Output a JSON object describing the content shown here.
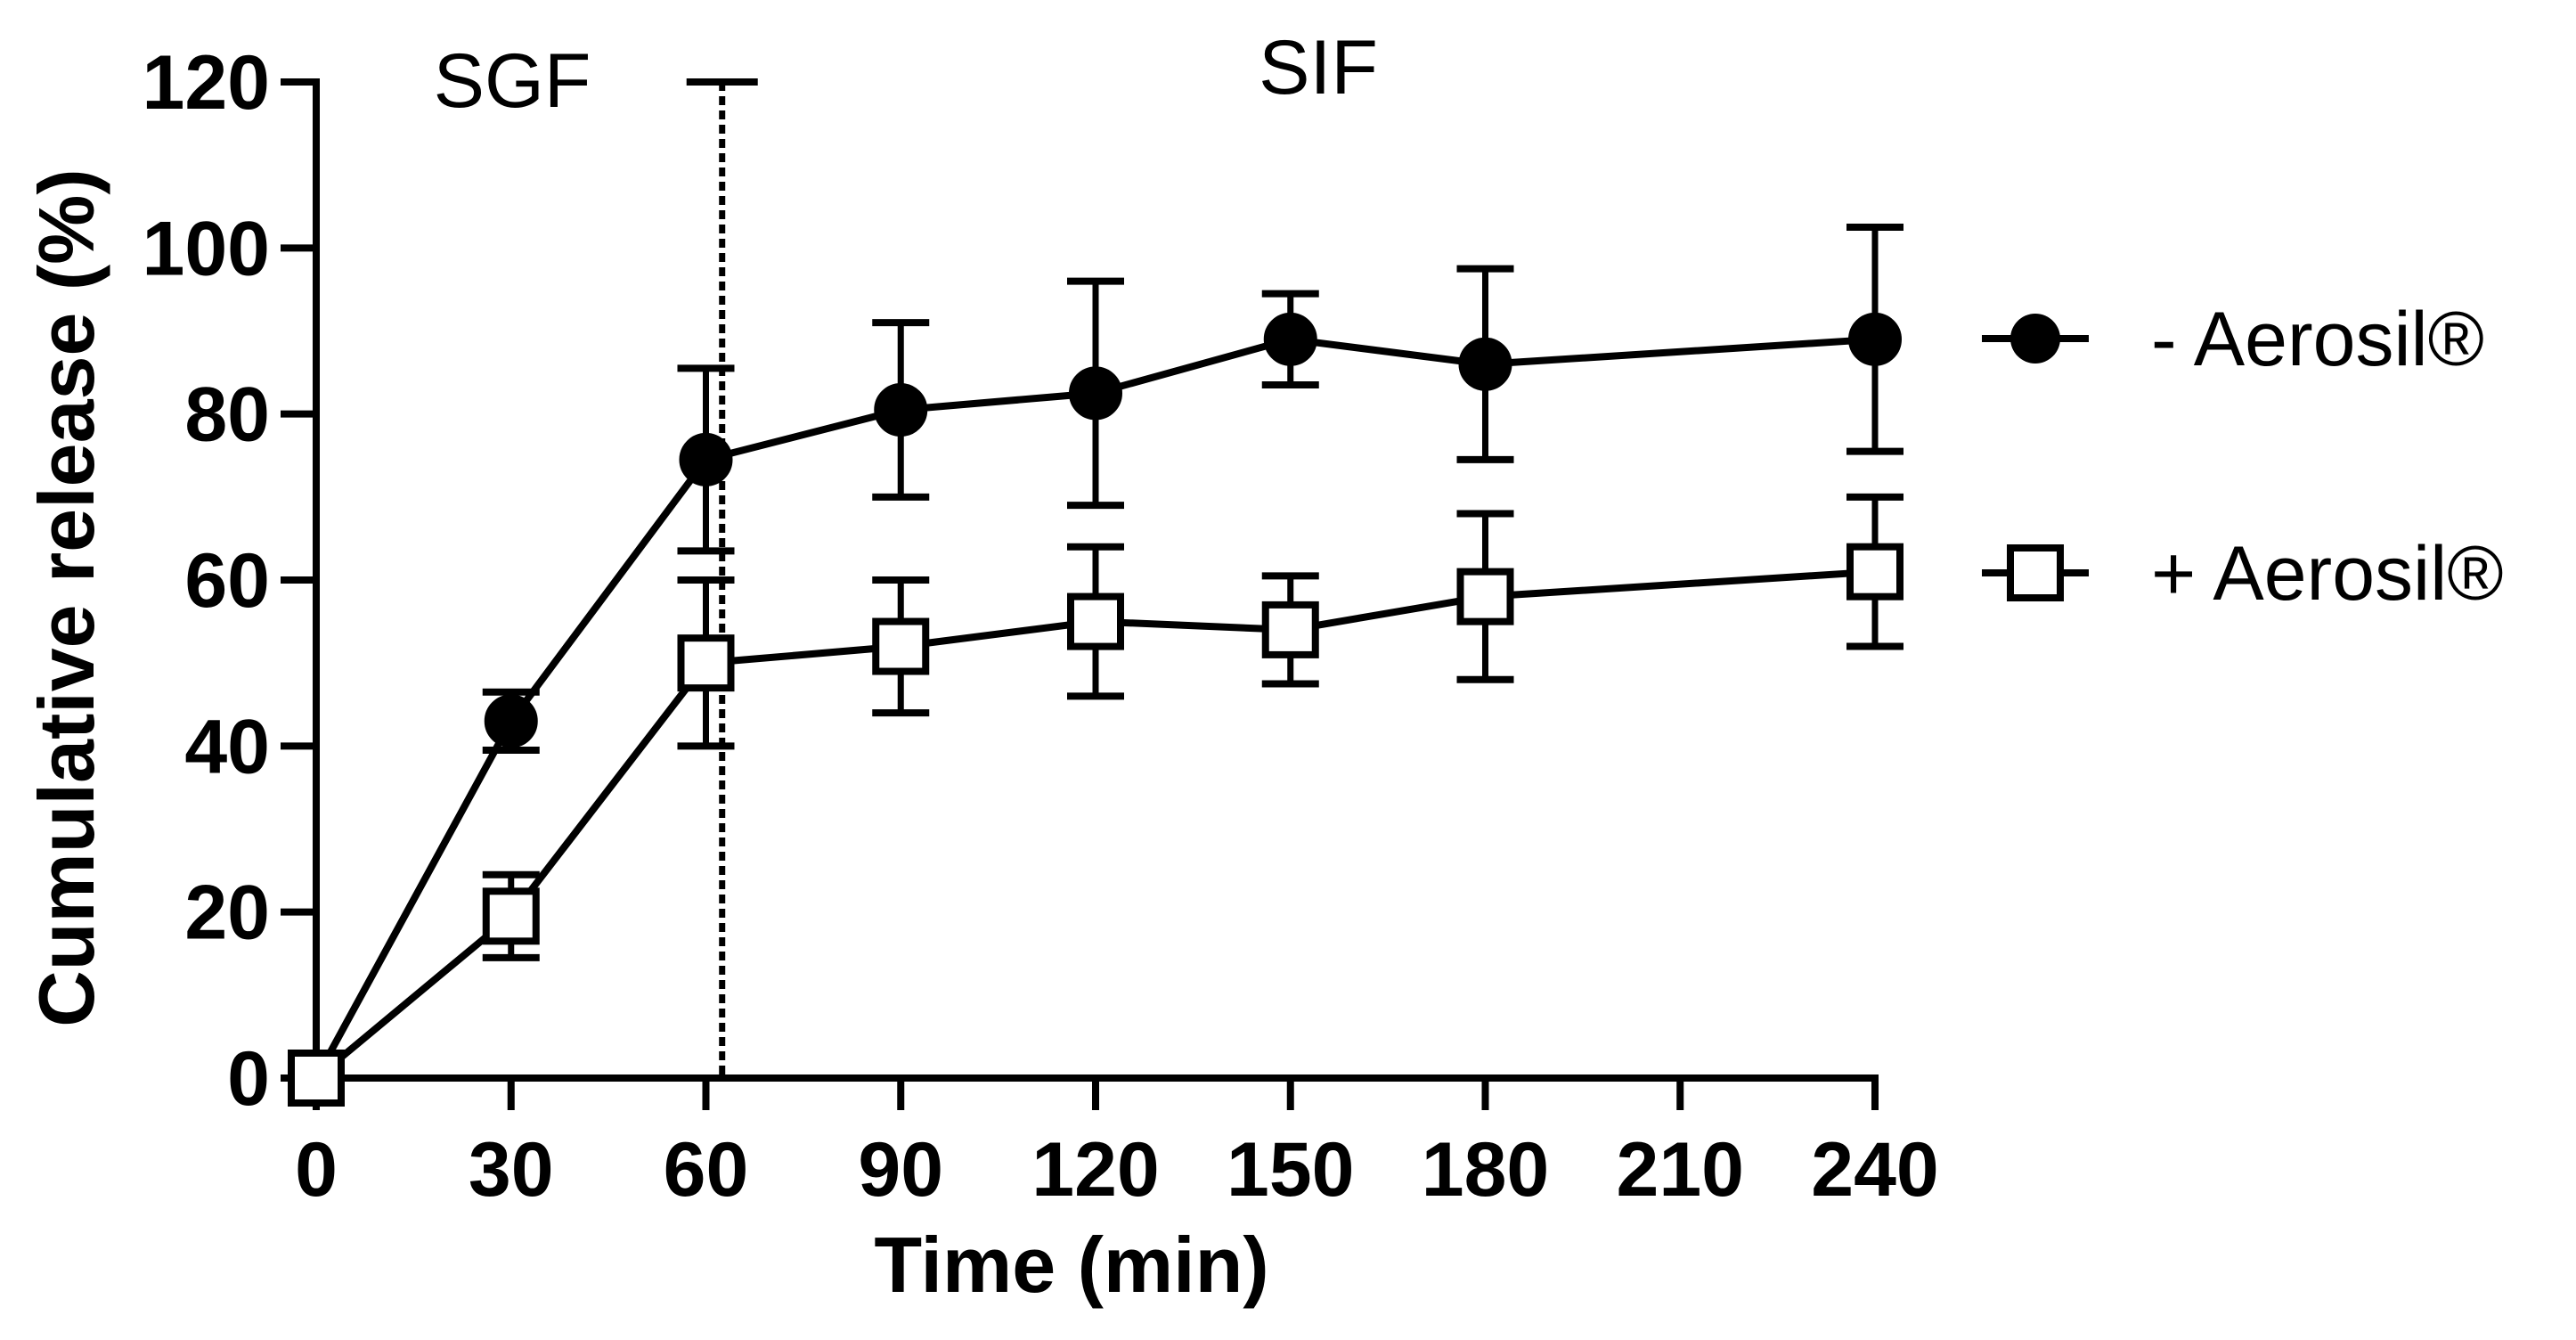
{
  "chart_data": {
    "type": "line",
    "title": "",
    "xlabel": "Time (min)",
    "ylabel": "Cumulative release (%)",
    "xlim": [
      0,
      240
    ],
    "ylim": [
      0,
      120
    ],
    "x_ticks": [
      "0",
      "30",
      "60",
      "90",
      "120",
      "150",
      "180",
      "210",
      "240"
    ],
    "x_tick_values": [
      0,
      30,
      60,
      90,
      120,
      150,
      180,
      210,
      240
    ],
    "y_ticks": [
      "0",
      "20",
      "40",
      "60",
      "80",
      "100",
      "120"
    ],
    "y_tick_values": [
      0,
      20,
      40,
      60,
      80,
      100,
      120
    ],
    "x_tick_positions": [
      0,
      30,
      60,
      90,
      120,
      150,
      180,
      210,
      240
    ],
    "x_point_positions": [
      0,
      30,
      60,
      90,
      120,
      150,
      180,
      240
    ],
    "x_point_labels": [
      "0",
      "30",
      "60",
      "90",
      "120",
      "150",
      "180",
      "240"
    ],
    "grid": false,
    "legend_position": "right",
    "series": [
      {
        "name": "- Aerosil®",
        "marker": "filled-circle",
        "values": [
          0,
          43,
          74.5,
          80.5,
          82.5,
          89,
          86,
          89
        ],
        "error": [
          0,
          3.5,
          11,
          10.5,
          13.5,
          5.5,
          11.5,
          13.5
        ]
      },
      {
        "name": "+ Aerosil®",
        "marker": "open-square",
        "values": [
          0,
          19.5,
          50,
          52,
          55,
          54,
          58,
          61
        ],
        "error": [
          0,
          5,
          10,
          8,
          9,
          6.5,
          10,
          9
        ]
      }
    ],
    "annotations": {
      "phase1": "SGF",
      "phase2": "SIF",
      "divider_x": 62.5
    }
  }
}
